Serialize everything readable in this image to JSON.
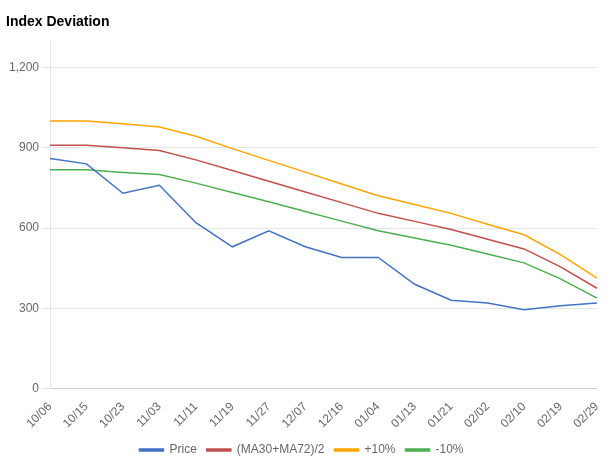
{
  "chart_data": {
    "type": "line",
    "title": "Index Deviation",
    "categories": [
      "10/06",
      "10/15",
      "10/23",
      "11/03",
      "11/11",
      "11/19",
      "11/27",
      "12/07",
      "12/16",
      "01/04",
      "01/13",
      "01/21",
      "02/02",
      "02/10",
      "02/19",
      "02/29"
    ],
    "series": [
      {
        "name": "Price",
        "color": "#4472C4",
        "values": [
          860,
          840,
          730,
          760,
          620,
          530,
          590,
          530,
          490,
          490,
          390,
          330,
          320,
          295,
          310,
          320
        ]
      },
      {
        "name": "(MA30+MA72)/2",
        "color": "#C0504D",
        "values": [
          910,
          910,
          900,
          890,
          855,
          815,
          775,
          735,
          695,
          655,
          625,
          595,
          558,
          522,
          455,
          375
        ]
      },
      {
        "name": "+10%",
        "color": "#FFA500",
        "values": [
          1000,
          1000,
          990,
          978,
          943,
          897,
          853,
          809,
          765,
          721,
          688,
          655,
          614,
          575,
          501,
          413
        ]
      },
      {
        "name": "-10%",
        "color": "#4CAF50",
        "values": [
          818,
          818,
          808,
          800,
          768,
          733,
          698,
          662,
          626,
          590,
          563,
          536,
          503,
          470,
          410,
          338
        ]
      }
    ],
    "ylim": [
      0,
      1300
    ],
    "yticks": [
      0,
      300,
      600,
      900,
      {
        "value": 1200,
        "label": "1,200"
      }
    ],
    "grid": true,
    "legend": "bottom"
  }
}
